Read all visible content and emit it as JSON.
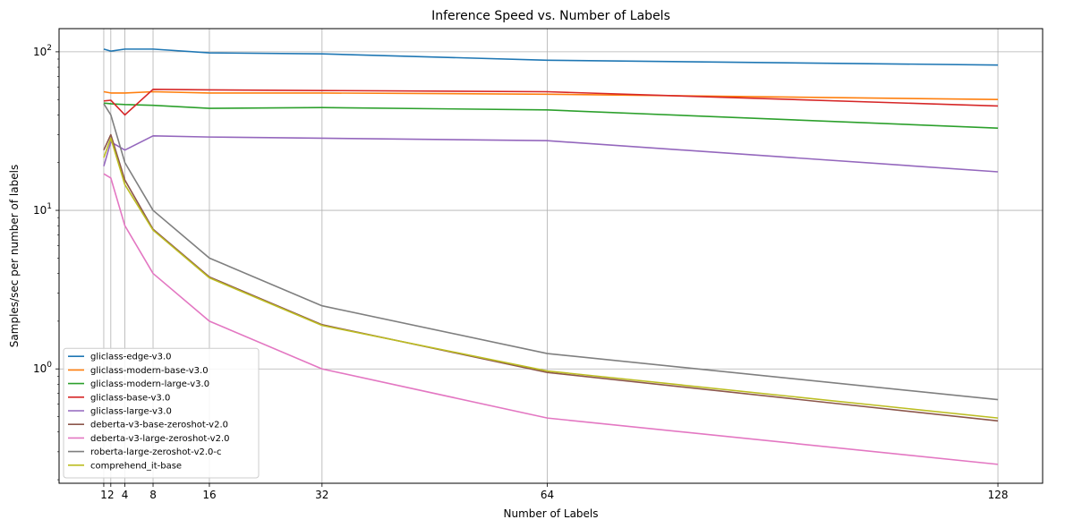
{
  "chart_data": {
    "type": "line",
    "title": "Inference Speed vs. Number of Labels",
    "xlabel": "Number of Labels",
    "ylabel": "Samples/sec per number of labels",
    "yscale": "log",
    "ylim": [
      0.19,
      140
    ],
    "xlim": [
      -5.35,
      134.35
    ],
    "x": [
      1,
      2,
      4,
      8,
      16,
      32,
      64,
      128
    ],
    "x_tick_labels": [
      "1",
      "2",
      "4",
      "8",
      "16",
      "32",
      "64",
      "128"
    ],
    "y_ticks": [
      1,
      10,
      100
    ],
    "y_tick_labels": [
      {
        "base": "10",
        "exp": "0"
      },
      {
        "base": "10",
        "exp": "1"
      },
      {
        "base": "10",
        "exp": "2"
      }
    ],
    "grid": true,
    "legend_position": "lower-left",
    "series": [
      {
        "name": "gliclass-edge-v3.0",
        "color": "#1f77b4",
        "values": [
          104,
          101,
          104,
          104,
          98.5,
          97,
          88.5,
          82.5
        ]
      },
      {
        "name": "gliclass-modern-base-v3.0",
        "color": "#ff7f0e",
        "values": [
          56,
          55,
          55,
          56,
          55,
          55,
          54,
          50
        ]
      },
      {
        "name": "gliclass-modern-large-v3.0",
        "color": "#2ca02c",
        "values": [
          47.5,
          47,
          46.5,
          46,
          44,
          44.5,
          43,
          33
        ]
      },
      {
        "name": "gliclass-base-v3.0",
        "color": "#d62728",
        "values": [
          49,
          49.5,
          40,
          58,
          57.5,
          57,
          56,
          45.5
        ]
      },
      {
        "name": "gliclass-large-v3.0",
        "color": "#9467bd",
        "values": [
          19,
          27,
          24,
          29.5,
          29,
          28.5,
          27.5,
          17.5
        ]
      },
      {
        "name": "deberta-v3-base-zeroshot-v2.0",
        "color": "#8c564b",
        "values": [
          24,
          30,
          15.5,
          7.6,
          3.8,
          1.9,
          0.95,
          0.47
        ]
      },
      {
        "name": "deberta-v3-large-zeroshot-v2.0",
        "color": "#e377c2",
        "values": [
          17,
          16,
          8,
          4,
          2,
          1,
          0.49,
          0.25
        ]
      },
      {
        "name": "roberta-large-zeroshot-v2.0-c",
        "color": "#7f7f7f",
        "values": [
          47,
          40,
          20,
          10,
          5,
          2.5,
          1.25,
          0.64
        ]
      },
      {
        "name": "comprehend_it-base",
        "color": "#bcbd22",
        "values": [
          21.5,
          28.5,
          14.5,
          7.5,
          3.75,
          1.88,
          0.97,
          0.49
        ]
      }
    ]
  }
}
